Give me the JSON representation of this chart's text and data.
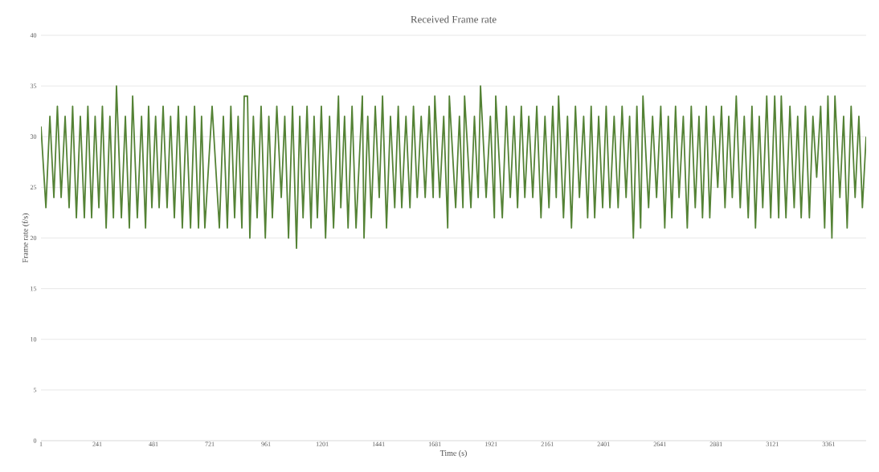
{
  "chart_data": {
    "type": "line",
    "title": "Received Frame rate",
    "xlabel": "Time (s)",
    "ylabel": "Frame rate (f/s)",
    "xlim": [
      1,
      3521
    ],
    "ylim": [
      0,
      40
    ],
    "xticks": [
      1,
      241,
      481,
      721,
      961,
      1201,
      1441,
      1681,
      1921,
      2161,
      2401,
      2641,
      2881,
      3121,
      3361
    ],
    "yticks": [
      0,
      5,
      10,
      15,
      20,
      25,
      30,
      35,
      40
    ],
    "grid": "y",
    "marker": "none",
    "line_style": "solid",
    "series": [
      {
        "color": "#548235",
        "x": [
          1,
          22,
          39,
          56,
          71,
          87,
          104,
          121,
          136,
          152,
          169,
          186,
          201,
          217,
          232,
          248,
          263,
          279,
          295,
          310,
          323,
          344,
          361,
          378,
          392,
          412,
          430,
          447,
          460,
          474,
          490,
          505,
          522,
          539,
          554,
          570,
          587,
          604,
          621,
          639,
          656,
          673,
          686,
          700,
          731,
          762,
          779,
          796,
          811,
          827,
          842,
          858,
          868,
          882,
          892,
          907,
          923,
          940,
          958,
          973,
          988,
          1007,
          1026,
          1041,
          1057,
          1074,
          1091,
          1105,
          1119,
          1136,
          1153,
          1166,
          1180,
          1197,
          1215,
          1232,
          1249,
          1270,
          1280,
          1296,
          1311,
          1328,
          1345,
          1372,
          1379,
          1395,
          1410,
          1427,
          1444,
          1458,
          1475,
          1492,
          1510,
          1525,
          1540,
          1558,
          1575,
          1590,
          1606,
          1623,
          1640,
          1657,
          1674,
          1681,
          1702,
          1719,
          1736,
          1743,
          1770,
          1786,
          1801,
          1808,
          1835,
          1850,
          1866,
          1876,
          1900,
          1918,
          1935,
          1941,
          1969,
          1986,
          2003,
          2019,
          2034,
          2050,
          2065,
          2082,
          2099,
          2116,
          2134,
          2151,
          2168,
          2184,
          2199,
          2209,
          2230,
          2247,
          2264,
          2281,
          2298,
          2316,
          2333,
          2348,
          2363,
          2380,
          2397,
          2412,
          2428,
          2446,
          2463,
          2480,
          2497,
          2512,
          2528,
          2543,
          2559,
          2569,
          2593,
          2610,
          2627,
          2645,
          2662,
          2677,
          2692,
          2708,
          2723,
          2741,
          2758,
          2775,
          2792,
          2808,
          2823,
          2839,
          2854,
          2871,
          2888,
          2904,
          2919,
          2935,
          2950,
          2967,
          2984,
          3001,
          3018,
          3034,
          3049,
          3065,
          3080,
          3097,
          3114,
          3131,
          3148,
          3159,
          3179,
          3196,
          3214,
          3229,
          3244,
          3262,
          3279,
          3294,
          3310,
          3327,
          3344,
          3358,
          3375,
          3388,
          3409,
          3425,
          3440,
          3457,
          3474,
          3490,
          3505,
          3521
        ],
        "values": [
          31,
          23,
          32,
          24,
          33,
          24,
          32,
          23,
          33,
          22,
          32,
          22,
          33,
          22,
          32,
          23,
          33,
          21,
          32,
          22,
          35,
          22,
          32,
          21,
          34,
          22,
          32,
          21,
          33,
          23,
          32,
          23,
          33,
          23,
          32,
          22,
          33,
          21,
          32,
          21,
          33,
          21,
          32,
          21,
          33,
          21,
          32,
          21,
          33,
          22,
          32,
          21,
          34,
          34,
          20,
          32,
          22,
          33,
          20,
          32,
          22,
          33,
          24,
          32,
          20,
          33,
          19,
          32,
          22,
          33,
          21,
          32,
          22,
          33,
          20,
          32,
          21,
          34,
          23,
          32,
          21,
          33,
          21,
          34,
          20,
          32,
          22,
          33,
          24,
          34,
          21,
          32,
          23,
          33,
          23,
          32,
          23,
          33,
          24,
          32,
          24,
          33,
          24,
          34,
          24,
          32,
          21,
          34,
          23,
          32,
          23,
          34,
          23,
          32,
          24,
          35,
          24,
          32,
          22,
          34,
          22,
          33,
          24,
          32,
          23,
          33,
          24,
          32,
          24,
          33,
          22,
          32,
          23,
          33,
          24,
          34,
          22,
          32,
          21,
          33,
          24,
          32,
          22,
          33,
          22,
          32,
          23,
          33,
          23,
          32,
          23,
          33,
          24,
          32,
          20,
          33,
          21,
          34,
          23,
          32,
          24,
          33,
          21,
          32,
          22,
          33,
          24,
          32,
          21,
          33,
          23,
          32,
          22,
          33,
          22,
          32,
          25,
          33,
          23,
          32,
          24,
          34,
          23,
          32,
          22,
          33,
          21,
          32,
          23,
          34,
          22,
          34,
          22,
          34,
          22,
          33,
          23,
          32,
          22,
          33,
          22,
          32,
          26,
          33,
          21,
          34,
          20,
          34,
          24,
          32,
          21,
          33,
          24,
          32,
          23,
          30
        ]
      }
    ]
  }
}
